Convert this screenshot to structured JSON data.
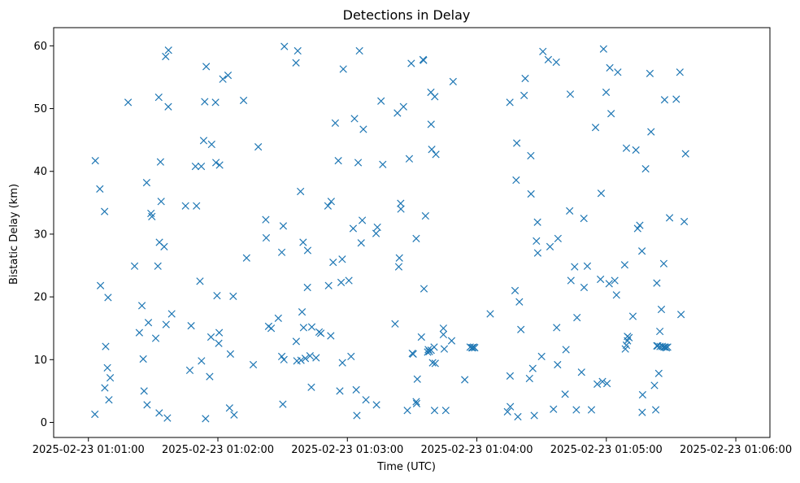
{
  "chart_data": {
    "type": "scatter",
    "title": "Detections in Delay",
    "xlabel": "Time (UTC)",
    "ylabel": "Bistatic Delay (km)",
    "x_ticks": [
      "2025-02-23 01:01:00",
      "2025-02-23 01:02:00",
      "2025-02-23 01:03:00",
      "2025-02-23 01:04:00",
      "2025-02-23 01:05:00",
      "2025-02-23 01:06:00"
    ],
    "y_ticks": [
      "0",
      "10",
      "20",
      "30",
      "40",
      "50",
      "60"
    ],
    "xlim_seconds": [
      -16.1,
      315.8
    ],
    "ylim": [
      -2.4,
      62.9
    ],
    "x_unit": "seconds after 2025-02-23 01:01:00",
    "marker": "x",
    "color": "#1f77b4",
    "grid": false,
    "series": [
      {
        "points": [
          [
            3.0,
            1.3
          ],
          [
            3.2,
            41.7
          ],
          [
            5.3,
            37.2
          ],
          [
            5.6,
            21.8
          ],
          [
            7.5,
            33.6
          ],
          [
            7.6,
            5.5
          ],
          [
            8.0,
            12.1
          ],
          [
            8.8,
            8.7
          ],
          [
            9.1,
            19.9
          ],
          [
            9.5,
            3.6
          ],
          [
            10.1,
            7.1
          ],
          [
            18.4,
            51.0
          ],
          [
            21.4,
            24.9
          ],
          [
            23.6,
            14.3
          ],
          [
            24.8,
            18.6
          ],
          [
            25.4,
            10.1
          ],
          [
            25.8,
            5.0
          ],
          [
            27.0,
            38.2
          ],
          [
            27.2,
            2.8
          ],
          [
            27.8,
            15.9
          ],
          [
            29.0,
            33.3
          ],
          [
            29.4,
            32.8
          ],
          [
            31.2,
            13.4
          ],
          [
            32.2,
            24.9
          ],
          [
            32.6,
            51.8
          ],
          [
            32.8,
            1.5
          ],
          [
            32.9,
            28.7
          ],
          [
            33.4,
            41.5
          ],
          [
            33.7,
            35.2
          ],
          [
            35.1,
            28.0
          ],
          [
            35.8,
            58.3
          ],
          [
            36.0,
            15.6
          ],
          [
            36.6,
            0.7
          ],
          [
            37.0,
            50.3
          ],
          [
            37.1,
            59.3
          ],
          [
            38.6,
            17.3
          ],
          [
            45.0,
            34.5
          ],
          [
            47.0,
            8.3
          ],
          [
            47.6,
            15.4
          ],
          [
            49.6,
            40.8
          ],
          [
            50.1,
            34.5
          ],
          [
            51.7,
            22.5
          ],
          [
            52.3,
            40.8
          ],
          [
            52.4,
            9.8
          ],
          [
            53.4,
            44.9
          ],
          [
            53.9,
            51.1
          ],
          [
            54.3,
            0.6
          ],
          [
            54.6,
            56.7
          ],
          [
            56.2,
            7.3
          ],
          [
            56.8,
            13.6
          ],
          [
            57.1,
            44.3
          ],
          [
            58.9,
            51.0
          ],
          [
            59.1,
            41.4
          ],
          [
            59.6,
            20.2
          ],
          [
            60.4,
            12.6
          ],
          [
            60.6,
            14.3
          ],
          [
            60.8,
            41.0
          ],
          [
            62.3,
            54.7
          ],
          [
            64.7,
            55.3
          ],
          [
            65.4,
            2.3
          ],
          [
            65.8,
            10.9
          ],
          [
            67.1,
            20.1
          ],
          [
            67.5,
            1.2
          ],
          [
            71.9,
            51.3
          ],
          [
            73.3,
            26.2
          ],
          [
            76.4,
            9.2
          ],
          [
            78.7,
            43.9
          ],
          [
            82.2,
            32.3
          ],
          [
            82.4,
            29.4
          ],
          [
            83.5,
            15.3
          ],
          [
            84.7,
            15.0
          ],
          [
            88.0,
            16.6
          ],
          [
            89.6,
            27.1
          ],
          [
            89.6,
            10.5
          ],
          [
            90.1,
            2.9
          ],
          [
            90.3,
            31.3
          ],
          [
            90.6,
            10.0
          ],
          [
            90.8,
            59.9
          ],
          [
            96.2,
            57.3
          ],
          [
            96.3,
            12.9
          ],
          [
            96.6,
            9.8
          ],
          [
            97.0,
            59.2
          ],
          [
            98.3,
            36.8
          ],
          [
            98.5,
            9.9
          ],
          [
            99.0,
            17.6
          ],
          [
            99.5,
            28.7
          ],
          [
            99.7,
            15.1
          ],
          [
            100.5,
            10.2
          ],
          [
            101.5,
            21.5
          ],
          [
            101.6,
            27.4
          ],
          [
            102.7,
            10.6
          ],
          [
            103.3,
            5.6
          ],
          [
            103.5,
            15.2
          ],
          [
            105.5,
            10.3
          ],
          [
            106.9,
            14.4
          ],
          [
            107.7,
            14.2
          ],
          [
            111.0,
            34.5
          ],
          [
            111.3,
            21.8
          ],
          [
            112.3,
            13.8
          ],
          [
            112.5,
            35.2
          ],
          [
            113.4,
            25.5
          ],
          [
            114.4,
            47.7
          ],
          [
            115.8,
            41.7
          ],
          [
            116.5,
            5.0
          ],
          [
            117.1,
            22.3
          ],
          [
            117.6,
            26.0
          ],
          [
            117.7,
            9.5
          ],
          [
            118.1,
            56.3
          ],
          [
            120.7,
            22.6
          ],
          [
            121.7,
            10.5
          ],
          [
            122.7,
            30.9
          ],
          [
            123.3,
            48.4
          ],
          [
            124.1,
            5.2
          ],
          [
            124.4,
            1.1
          ],
          [
            125.0,
            41.4
          ],
          [
            125.6,
            59.2
          ],
          [
            126.4,
            28.6
          ],
          [
            126.9,
            32.2
          ],
          [
            127.4,
            46.7
          ],
          [
            128.6,
            3.6
          ],
          [
            133.3,
            30.1
          ],
          [
            133.5,
            2.8
          ],
          [
            133.9,
            31.1
          ],
          [
            135.6,
            51.2
          ],
          [
            136.4,
            41.1
          ],
          [
            142.1,
            15.7
          ],
          [
            143.2,
            49.3
          ],
          [
            143.8,
            24.8
          ],
          [
            144.1,
            26.2
          ],
          [
            144.7,
            34.9
          ],
          [
            144.8,
            34.0
          ],
          [
            146.0,
            50.3
          ],
          [
            147.8,
            1.9
          ],
          [
            148.7,
            42.0
          ],
          [
            149.6,
            57.2
          ],
          [
            150.1,
            11.0
          ],
          [
            150.5,
            10.9
          ],
          [
            151.9,
            3.3
          ],
          [
            151.9,
            29.3
          ],
          [
            152.1,
            3.0
          ],
          [
            152.4,
            6.9
          ],
          [
            154.3,
            13.6
          ],
          [
            155.1,
            57.8
          ],
          [
            155.3,
            57.7
          ],
          [
            155.5,
            21.3
          ],
          [
            156.2,
            32.9
          ],
          [
            157.2,
            11.2
          ],
          [
            157.5,
            11.6
          ],
          [
            158.0,
            11.3
          ],
          [
            158.7,
            52.6
          ],
          [
            158.8,
            47.5
          ],
          [
            158.8,
            11.5
          ],
          [
            159.1,
            43.5
          ],
          [
            159.5,
            9.5
          ],
          [
            160.2,
            12.0
          ],
          [
            160.4,
            1.9
          ],
          [
            160.5,
            51.9
          ],
          [
            160.7,
            9.4
          ],
          [
            161.0,
            42.7
          ],
          [
            164.5,
            15.0
          ],
          [
            164.5,
            14.0
          ],
          [
            164.9,
            11.7
          ],
          [
            165.6,
            1.9
          ],
          [
            168.3,
            13.0
          ],
          [
            169.0,
            54.3
          ],
          [
            174.4,
            6.8
          ],
          [
            176.9,
            12.0
          ],
          [
            177.7,
            11.9
          ],
          [
            178.0,
            11.9
          ],
          [
            178.5,
            12.0
          ],
          [
            179.0,
            11.9
          ],
          [
            186.2,
            17.3
          ],
          [
            194.2,
            1.7
          ],
          [
            195.3,
            51.0
          ],
          [
            195.4,
            7.4
          ],
          [
            195.5,
            2.5
          ],
          [
            197.7,
            21.0
          ],
          [
            198.2,
            38.6
          ],
          [
            198.5,
            44.5
          ],
          [
            199.0,
            0.9
          ],
          [
            199.7,
            19.2
          ],
          [
            200.4,
            14.8
          ],
          [
            201.9,
            52.1
          ],
          [
            202.4,
            54.8
          ],
          [
            204.4,
            7.0
          ],
          [
            205.0,
            42.5
          ],
          [
            205.1,
            36.4
          ],
          [
            205.9,
            8.6
          ],
          [
            206.6,
            1.1
          ],
          [
            207.6,
            28.9
          ],
          [
            208.1,
            31.9
          ],
          [
            208.2,
            27.0
          ],
          [
            210.0,
            10.5
          ],
          [
            210.6,
            59.1
          ],
          [
            213.1,
            57.8
          ],
          [
            213.9,
            28.0
          ],
          [
            215.5,
            2.1
          ],
          [
            216.8,
            57.4
          ],
          [
            217.0,
            15.1
          ],
          [
            217.4,
            9.2
          ],
          [
            217.6,
            29.3
          ],
          [
            220.9,
            4.5
          ],
          [
            221.3,
            11.6
          ],
          [
            223.0,
            33.7
          ],
          [
            223.3,
            52.3
          ],
          [
            223.6,
            22.6
          ],
          [
            225.3,
            24.8
          ],
          [
            226.1,
            2.0
          ],
          [
            226.4,
            16.7
          ],
          [
            228.5,
            8.0
          ],
          [
            229.6,
            32.5
          ],
          [
            229.7,
            21.5
          ],
          [
            231.2,
            24.9
          ],
          [
            233.1,
            2.0
          ],
          [
            235.0,
            47.0
          ],
          [
            235.8,
            6.1
          ],
          [
            237.3,
            22.8
          ],
          [
            237.6,
            36.5
          ],
          [
            238.2,
            6.5
          ],
          [
            238.7,
            59.5
          ],
          [
            239.9,
            52.6
          ],
          [
            240.3,
            6.2
          ],
          [
            241.3,
            22.1
          ],
          [
            241.6,
            56.5
          ],
          [
            242.2,
            49.2
          ],
          [
            243.9,
            22.6
          ],
          [
            244.7,
            20.3
          ],
          [
            245.3,
            55.8
          ],
          [
            248.5,
            25.1
          ],
          [
            248.8,
            11.7
          ],
          [
            249.3,
            12.3
          ],
          [
            249.3,
            43.7
          ],
          [
            249.8,
            13.0
          ],
          [
            249.8,
            13.7
          ],
          [
            250.5,
            13.5
          ],
          [
            252.3,
            16.9
          ],
          [
            253.7,
            43.4
          ],
          [
            254.5,
            30.9
          ],
          [
            255.5,
            31.4
          ],
          [
            256.5,
            27.3
          ],
          [
            256.6,
            1.6
          ],
          [
            256.8,
            4.4
          ],
          [
            258.2,
            40.4
          ],
          [
            260.2,
            55.6
          ],
          [
            260.7,
            46.3
          ],
          [
            262.3,
            5.9
          ],
          [
            262.9,
            2.0
          ],
          [
            263.4,
            22.2
          ],
          [
            263.4,
            12.2
          ],
          [
            263.8,
            12.2
          ],
          [
            264.3,
            7.8
          ],
          [
            264.8,
            14.5
          ],
          [
            264.9,
            12.1
          ],
          [
            265.5,
            18.0
          ],
          [
            265.9,
            12.1
          ],
          [
            266.6,
            25.3
          ],
          [
            266.7,
            12.0
          ],
          [
            267.0,
            51.4
          ],
          [
            267.3,
            12.0
          ],
          [
            267.8,
            11.9
          ],
          [
            268.4,
            12.0
          ],
          [
            269.3,
            32.6
          ],
          [
            272.4,
            51.5
          ],
          [
            274.1,
            55.8
          ],
          [
            274.6,
            17.2
          ],
          [
            276.1,
            32.0
          ],
          [
            276.7,
            42.8
          ]
        ]
      }
    ]
  }
}
